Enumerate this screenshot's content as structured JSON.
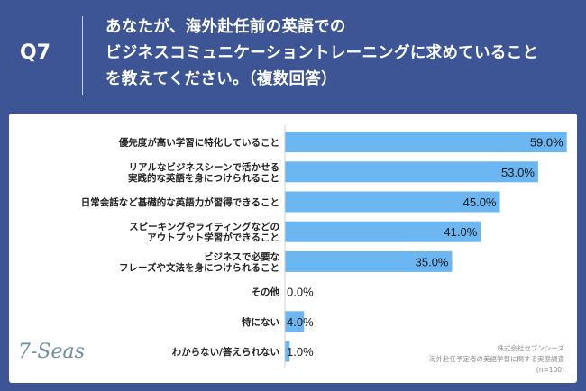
{
  "question": {
    "label": "Q7",
    "lines": [
      "あなたが、海外赴任前の英語での",
      "ビジネスコミュニケーショントレーニングに求めていること",
      "を教えてください。（複数回答）"
    ]
  },
  "logo_text": "7-Seas",
  "credit": {
    "company": "株式会社セブンシーズ",
    "survey": "海外赴任予定者の英語学習に関する実態調査",
    "sample": "(n=100)"
  },
  "colors": {
    "background": "#3d5495",
    "bar": "#6cb6f2",
    "axis": "#cccccc"
  },
  "chart_data": {
    "type": "bar",
    "orientation": "horizontal",
    "categories": [
      [
        "優先度が高い学習に特化していること"
      ],
      [
        "リアルなビジネスシーンで活かせる",
        "実践的な英語を身につけられること"
      ],
      [
        "日常会話など基礎的な英語力が習得できること"
      ],
      [
        "スピーキングやライティングなどの",
        "アウトプット学習ができること"
      ],
      [
        "ビジネスで必要な",
        "フレーズや文法を身につけられること"
      ],
      [
        "その他"
      ],
      [
        "特にない"
      ],
      [
        "わからない/答えられない"
      ]
    ],
    "values": [
      59.0,
      53.0,
      45.0,
      41.0,
      35.0,
      0.0,
      4.0,
      1.0
    ],
    "value_labels": [
      "59.0%",
      "53.0%",
      "45.0%",
      "41.0%",
      "35.0%",
      "0.0%",
      "4.0%",
      "1.0%"
    ],
    "xlim": [
      0,
      60
    ],
    "grid": false
  }
}
